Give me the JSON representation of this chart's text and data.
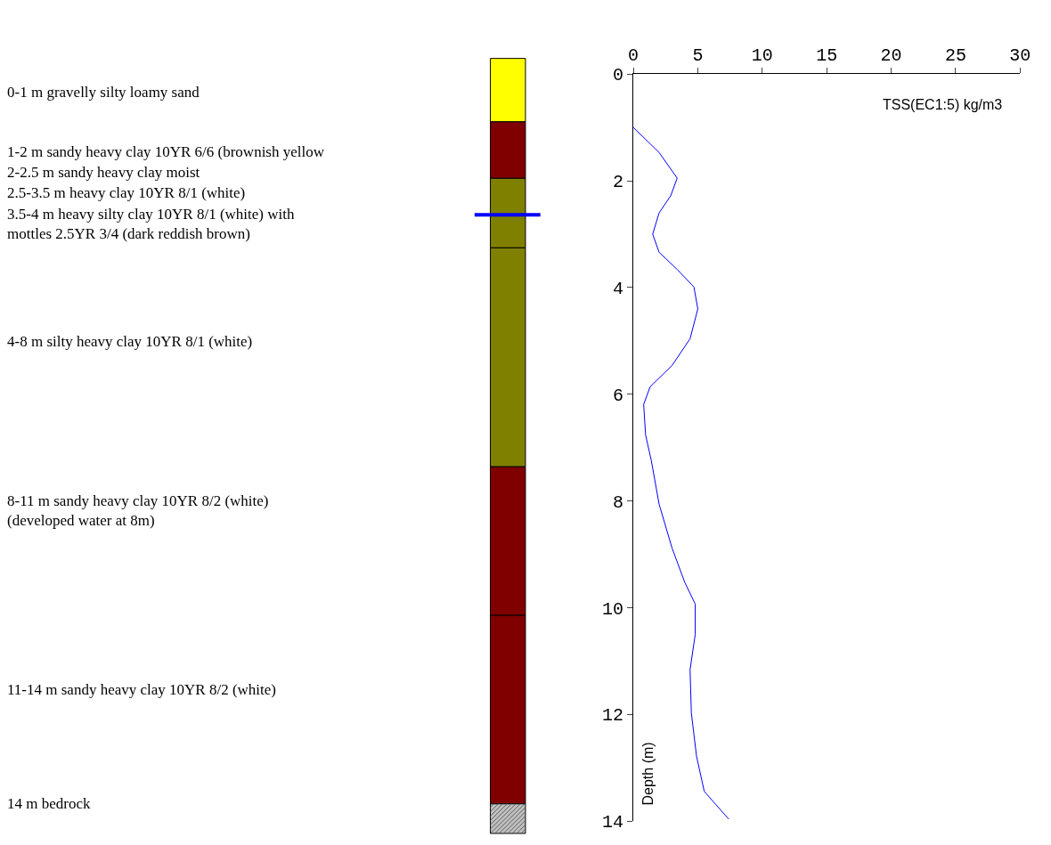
{
  "chart_data": {
    "type": "line",
    "xlabel": "TSS(EC1:5) kg/m3",
    "ylabel": "Depth (m)",
    "legend": false,
    "grid": false,
    "xlim": [
      0,
      30
    ],
    "xticks": [
      0,
      5,
      10,
      15,
      20,
      25,
      30
    ],
    "ylim": [
      14,
      0
    ],
    "yticks": [
      0,
      2,
      4,
      6,
      8,
      10,
      12,
      14
    ],
    "series": [
      {
        "color": "#0000ff",
        "values": [
          1.0,
          1.47,
          1.95,
          2.28,
          2.6,
          3.0,
          3.34,
          3.66,
          3.99,
          4.4,
          4.96,
          5.46,
          5.86,
          6.19,
          6.76,
          7.25,
          8.06,
          8.88,
          9.53,
          9.93,
          10.5,
          11.16,
          11.97,
          12.78,
          13.44,
          13.96
        ],
        "x": [
          0,
          2.0,
          3.4,
          2.9,
          2.0,
          1.5,
          2.0,
          3.4,
          4.7,
          5.0,
          4.4,
          3.0,
          1.3,
          0.8,
          0.95,
          1.4,
          2.0,
          3.0,
          4.0,
          4.8,
          4.8,
          4.4,
          4.5,
          4.9,
          5.5,
          7.4
        ]
      }
    ],
    "annotations": [
      "0-1 m gravelly silty loamy sand",
      "1-2 m sandy heavy clay 10YR 6/6 (brownish yellow",
      "2-2.5 m sandy heavy clay moist",
      "2.5-3.5 m heavy clay 10YR 8/1 (white)",
      "3.5-4 m heavy silty clay 10YR 8/1 (white) with\nmottles 2.5YR 3/4 (dark reddish brown)",
      "4-8 m silty heavy clay 10YR 8/1 (white)",
      "8-11 m sandy heavy clay 10YR 8/2 (white)\n(developed water at 8m)",
      "11-14 m sandy heavy clay 10YR 8/2 (white)",
      "14 m bedrock"
    ]
  }
}
